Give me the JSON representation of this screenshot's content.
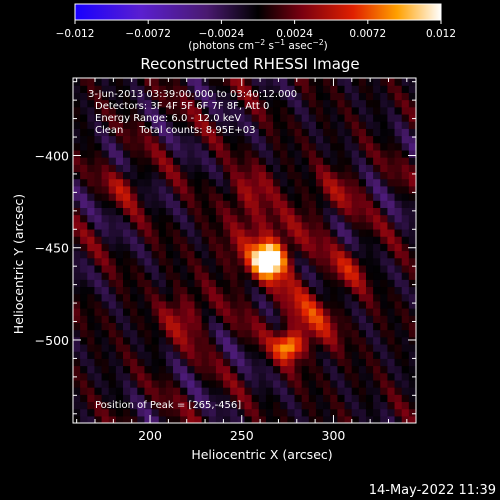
{
  "title": "Reconstructed RHESSI Image",
  "timestamp": "14-May-2022 11:39",
  "info": {
    "time_range": "3-Jun-2013 03:39:00.000 to 03:40:12.000",
    "detectors": "Detectors: 3F 4F 5F 6F 7F 8F, Att 0",
    "energy": "Energy Range: 6.0 - 12.0 keV",
    "clean": "Clean     Total counts: 8.95E+03",
    "peak": "Position of Peak = [265,-456]"
  },
  "colors": {
    "background": "#000000",
    "text": "#ffffff"
  },
  "colorbar": {
    "ticks": [
      -0.012,
      -0.0072,
      -0.0024,
      0.0024,
      0.0072,
      0.012
    ],
    "tick_labels": [
      "−0.012",
      "−0.0072",
      "−0.0024",
      "0.0024",
      "0.0072",
      "0.012"
    ],
    "unit_main": "(photons cm",
    "unit_sup1": "−2",
    "unit_mid": " s",
    "unit_sup2": "−1",
    "unit_end": " asec",
    "unit_sup3": "−2",
    "unit_close": ")",
    "colormap": "blue-purple-red-yellow-white"
  },
  "chart_data": {
    "type": "heatmap",
    "title": "Reconstructed RHESSI Image",
    "xlabel": "Heliocentric X (arcsec)",
    "ylabel": "Heliocentric Y (arcsec)",
    "xlim": [
      158,
      345
    ],
    "ylim": [
      -545,
      -358
    ],
    "xticks": [
      200,
      250,
      300
    ],
    "yticks": [
      -400,
      -450,
      -500
    ],
    "xtick_labels": [
      "200",
      "250",
      "300"
    ],
    "ytick_labels": [
      "−400",
      "−450",
      "−500"
    ],
    "zlim": [
      -0.012,
      0.012
    ],
    "grid_n": 48,
    "stripe_angle_deg": 45,
    "peak": {
      "x": 265,
      "y": -456,
      "value": 0.012
    },
    "sources": [
      {
        "x": 265,
        "y": -456,
        "amp": 0.0125,
        "sigma": 6
      },
      {
        "x": 262,
        "y": -450,
        "amp": 0.004,
        "sigma": 16
      },
      {
        "x": 276,
        "y": -503,
        "amp": 0.0085,
        "sigma": 5
      },
      {
        "x": 286,
        "y": -490,
        "amp": 0.0045,
        "sigma": 12
      },
      {
        "x": 255,
        "y": -418,
        "amp": 0.003,
        "sigma": 9
      },
      {
        "x": 218,
        "y": -488,
        "amp": 0.0035,
        "sigma": 10
      },
      {
        "x": 188,
        "y": -415,
        "amp": 0.003,
        "sigma": 7
      },
      {
        "x": 300,
        "y": -420,
        "amp": 0.0025,
        "sigma": 10
      },
      {
        "x": 310,
        "y": -460,
        "amp": 0.003,
        "sigma": 8
      }
    ]
  }
}
